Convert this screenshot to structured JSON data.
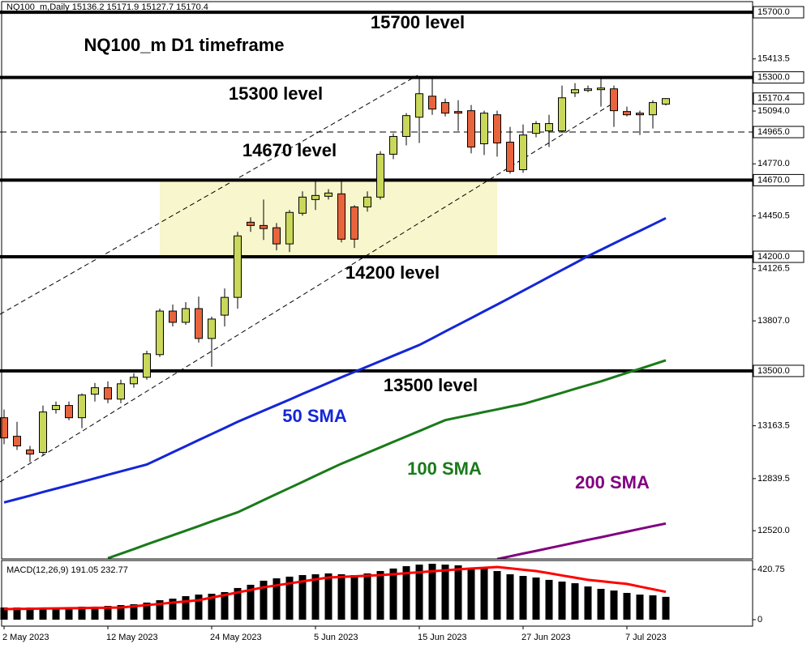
{
  "chart_data": {
    "type": "candlestick",
    "title": "NQ100_m D1 timeframe",
    "info": "NQ100_m,Daily  15136.2 15171.9 15127.7 15170.4",
    "categories": [
      "2 May 2023",
      null,
      null,
      null,
      null,
      null,
      null,
      null,
      "12 May 2023",
      null,
      null,
      null,
      null,
      null,
      null,
      null,
      "24 May 2023",
      null,
      null,
      null,
      null,
      null,
      null,
      null,
      "5 Jun 2023",
      null,
      null,
      null,
      null,
      null,
      null,
      null,
      "15 Jun 2023",
      null,
      null,
      null,
      null,
      null,
      null,
      null,
      "27 Jun 2023",
      null,
      null,
      null,
      null,
      null,
      null,
      null,
      "7 Jul 2023",
      null,
      null,
      null
    ],
    "open": [
      13213,
      13099,
      13015,
      13000,
      13263,
      13288,
      13213,
      13357,
      13397,
      13327,
      13421,
      13461,
      13600,
      13867,
      13798,
      13882,
      13699,
      13842,
      13951,
      14412,
      14392,
      14378,
      14279,
      14467,
      14551,
      14571,
      14586,
      14506,
      14506,
      14566,
      14829,
      14938,
      15056,
      15185,
      15146,
      15091,
      15096,
      14893,
      15071,
      14903,
      14734,
      14957,
      14972,
      14972,
      15205,
      15220,
      15225,
      15230,
      15091,
      15081,
      15071,
      15136.2
    ],
    "high": [
      13263,
      13188,
      13040,
      13288,
      13312,
      13312,
      13362,
      13426,
      13436,
      13446,
      13486,
      13624,
      13882,
      13907,
      13922,
      13956,
      13833,
      14006,
      14353,
      14442,
      14551,
      14407,
      14487,
      14601,
      14665,
      14615,
      14665,
      14516,
      14601,
      14848,
      14957,
      15081,
      15304,
      15309,
      15170,
      15160,
      15131,
      15096,
      15096,
      14997,
      15012,
      15032,
      15071,
      15250,
      15265,
      15250,
      15299,
      15250,
      15121,
      15096,
      15160,
      15171.9
    ],
    "low": [
      13050,
      13015,
      12941,
      12980,
      13238,
      13198,
      13149,
      13312,
      13302,
      13302,
      13397,
      13446,
      13585,
      13773,
      13783,
      13674,
      13525,
      13773,
      13882,
      14353,
      14303,
      14239,
      14229,
      14452,
      14487,
      14551,
      14288,
      14254,
      14477,
      14551,
      14799,
      14883,
      14898,
      15071,
      15061,
      14972,
      14834,
      14824,
      14814,
      14710,
      14715,
      14933,
      14873,
      14962,
      15180,
      15210,
      15121,
      14997,
      15061,
      14947,
      14987,
      15127.7
    ],
    "close": [
      13089,
      13040,
      12990,
      13248,
      13288,
      13213,
      13352,
      13397,
      13327,
      13421,
      13461,
      13605,
      13867,
      13798,
      13882,
      13699,
      13818,
      13951,
      14328,
      14392,
      14373,
      14279,
      14472,
      14566,
      14576,
      14591,
      14308,
      14308,
      14566,
      14829,
      14938,
      15066,
      15200,
      15106,
      15081,
      15081,
      14873,
      15081,
      14898,
      14724,
      14947,
      15017,
      15017,
      15175,
      15225,
      15230,
      15235,
      15096,
      15071,
      15071,
      15146,
      15170.4
    ],
    "up_color": "#c9d85b",
    "down_color": "#e8643c",
    "lines": [
      {
        "name": "50 SMA",
        "color": "#1426d6",
        "values": [
          12693,
          12714,
          12735,
          12757,
          12778,
          12799,
          12820,
          12841,
          12863,
          12884,
          12905,
          12926,
          12963,
          13001,
          13038,
          13076,
          13113,
          13150,
          13188,
          13222,
          13256,
          13290,
          13324,
          13359,
          13393,
          13427,
          13461,
          13494,
          13527,
          13560,
          13593,
          13626,
          13659,
          13700,
          13742,
          13783,
          13824,
          13866,
          13907,
          13949,
          13992,
          14034,
          14077,
          14119,
          14161,
          14204,
          14243,
          14282,
          14321,
          14359,
          14398,
          14437
        ]
      },
      {
        "name": "100 SMA",
        "color": "#1a7a1a",
        "values": [
          null,
          null,
          null,
          null,
          null,
          null,
          null,
          null,
          12351,
          12379,
          12407,
          12436,
          12464,
          12492,
          12520,
          12548,
          12577,
          12605,
          12633,
          12670,
          12708,
          12745,
          12782,
          12819,
          12857,
          12894,
          12931,
          12964,
          12998,
          13031,
          13065,
          13098,
          13131,
          13165,
          13198,
          13215,
          13231,
          13248,
          13264,
          13281,
          13297,
          13320,
          13343,
          13366,
          13390,
          13413,
          13436,
          13462,
          13488,
          13513,
          13539,
          13565
        ]
      },
      {
        "name": "200 SMA",
        "color": "#800080",
        "values": [
          null,
          null,
          null,
          null,
          null,
          null,
          null,
          null,
          null,
          null,
          null,
          null,
          null,
          null,
          null,
          null,
          null,
          null,
          null,
          null,
          null,
          null,
          null,
          null,
          null,
          null,
          null,
          null,
          null,
          null,
          null,
          null,
          null,
          null,
          null,
          null,
          null,
          null,
          12346,
          12363,
          12380,
          12396,
          12413,
          12430,
          12447,
          12464,
          12480,
          12497,
          12514,
          12531,
          12548,
          12564
        ]
      }
    ],
    "levels": [
      {
        "value": 15700,
        "label": "15700 level",
        "axis_label": "15700.0"
      },
      {
        "value": 15300,
        "label": "15300 level",
        "axis_label": "15300.0"
      },
      {
        "value": 14965,
        "axis_label": "14965.0",
        "dashed": true
      },
      {
        "value": 14670,
        "label": "14670 level",
        "axis_label": "14670.0"
      },
      {
        "value": 14200,
        "label": "14200 level",
        "axis_label": "14200.0"
      },
      {
        "value": 13500,
        "label": "13500 level",
        "axis_label": "13500.0"
      }
    ],
    "current_price": 15170.4,
    "ylim": [
      12347,
      15765
    ],
    "yticks": [
      15413.5,
      {
        "value": 15094,
        "label": "15094.0"
      },
      {
        "value": 14770,
        "label": "14770.0"
      },
      14450.5,
      14126.5,
      {
        "value": 13807,
        "label": "13807.0"
      },
      13163.5,
      12839.5,
      {
        "value": 12520,
        "label": "12520.0"
      }
    ],
    "macd": {
      "label": "MACD(12,26,9) 191.05 232.77",
      "histogram": [
        102,
        102,
        102,
        95,
        102,
        102,
        109,
        109,
        115,
        122,
        129,
        143,
        163,
        176,
        197,
        210,
        217,
        231,
        265,
        292,
        326,
        346,
        360,
        373,
        380,
        387,
        380,
        373,
        387,
        407,
        428,
        448,
        461,
        468,
        461,
        455,
        434,
        428,
        407,
        380,
        366,
        353,
        333,
        319,
        305,
        278,
        258,
        244,
        224,
        210,
        204,
        191.05
      ],
      "signal": [
        88,
        90,
        91,
        93,
        94,
        96,
        97,
        99,
        100,
        102,
        112,
        122,
        132,
        143,
        153,
        163,
        185,
        206,
        228,
        249,
        271,
        287,
        304,
        320,
        337,
        353,
        358,
        363,
        368,
        373,
        381,
        389,
        397,
        405,
        413,
        421,
        428,
        434,
        441,
        430,
        418,
        407,
        389,
        370,
        352,
        333,
        322,
        310,
        299,
        277,
        255,
        232.77
      ],
      "bar_color": "#000000",
      "signal_color": "#ff0000",
      "ylim": [
        -54,
        495
      ],
      "yticks": [
        420.75,
        0
      ]
    }
  }
}
